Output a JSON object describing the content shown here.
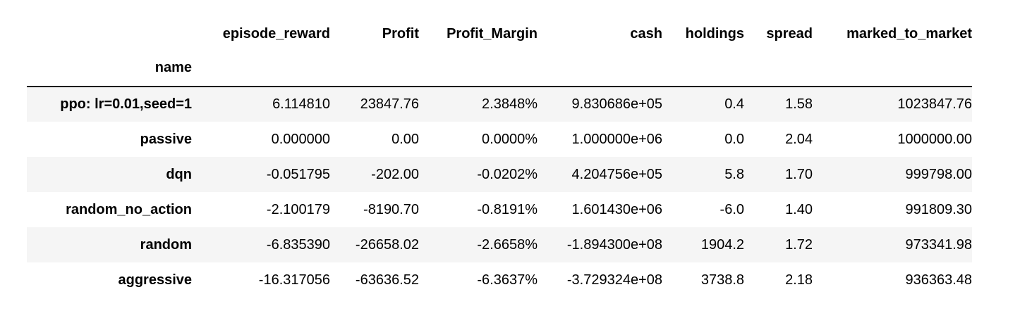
{
  "table": {
    "columns": [
      "episode_reward",
      "Profit",
      "Profit_Margin",
      "cash",
      "holdings",
      "spread",
      "marked_to_market"
    ],
    "index_name": "name",
    "rows": [
      {
        "name": "ppo: lr=0.01,seed=1",
        "cells": [
          "6.114810",
          "23847.76",
          "2.3848%",
          "9.830686e+05",
          "0.4",
          "1.58",
          "1023847.76"
        ]
      },
      {
        "name": "passive",
        "cells": [
          "0.000000",
          "0.00",
          "0.0000%",
          "1.000000e+06",
          "0.0",
          "2.04",
          "1000000.00"
        ]
      },
      {
        "name": "dqn",
        "cells": [
          "-0.051795",
          "-202.00",
          "-0.0202%",
          "4.204756e+05",
          "5.8",
          "1.70",
          "999798.00"
        ]
      },
      {
        "name": "random_no_action",
        "cells": [
          "-2.100179",
          "-8190.70",
          "-0.8191%",
          "1.601430e+06",
          "-6.0",
          "1.40",
          "991809.30"
        ]
      },
      {
        "name": "random",
        "cells": [
          "-6.835390",
          "-26658.02",
          "-2.6658%",
          "-1.894300e+08",
          "1904.2",
          "1.72",
          "973341.98"
        ]
      },
      {
        "name": "aggressive",
        "cells": [
          "-16.317056",
          "-63636.52",
          "-6.3637%",
          "-3.729324e+08",
          "3738.8",
          "2.18",
          "936363.48"
        ]
      }
    ]
  }
}
